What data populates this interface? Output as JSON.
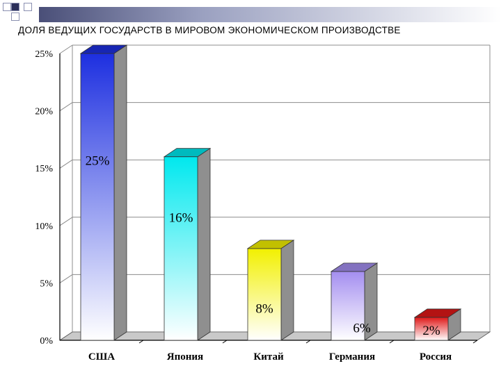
{
  "slide": {
    "title": "ДОЛЯ ВЕДУЩИХ ГОСУДАРСТВ В МИРОВОМ ЭКОНОМИЧЕСКОМ ПРОИЗВОДСТВЕ"
  },
  "chart_data": {
    "type": "bar",
    "title": "",
    "xlabel": "",
    "ylabel": "",
    "categories": [
      "США",
      "Япония",
      "Китай",
      "Германия",
      "Россия"
    ],
    "values": [
      25,
      16,
      8,
      6,
      2
    ],
    "data_labels": [
      "25%",
      "16%",
      "8%",
      "6%",
      "2%"
    ],
    "ylim": [
      0,
      25
    ],
    "y_ticks": [
      0,
      5,
      10,
      15,
      20,
      25
    ],
    "y_tick_labels": [
      "0%",
      "5%",
      "10%",
      "15%",
      "20%",
      "25%"
    ],
    "grid": true,
    "legend": "none",
    "colors": [
      "#1d2fe0",
      "#00e8ee",
      "#f2f000",
      "#a48ef0",
      "#e01818"
    ]
  }
}
